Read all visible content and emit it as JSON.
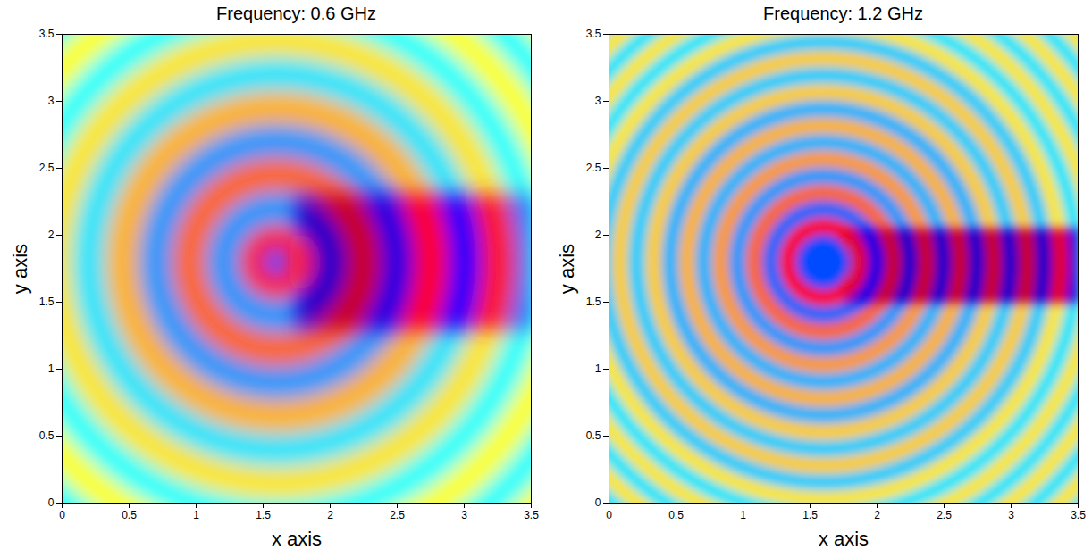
{
  "chart_data": [
    {
      "type": "heatmap",
      "title": "Frequency: 0.6 GHz",
      "x_label": "x axis",
      "y_label": "y axis",
      "xlim": [
        0,
        3.5
      ],
      "ylim": [
        0,
        3.5
      ],
      "xticks": [
        0,
        0.5,
        1,
        1.5,
        2,
        2.5,
        3,
        3.5
      ],
      "yticks": [
        0,
        0.5,
        1,
        1.5,
        2,
        2.5,
        3,
        3.5
      ],
      "color": "jet",
      "zlim": [
        -1,
        1
      ],
      "center": [
        1.6,
        1.8
      ],
      "rings": {
        "radius": [
          2.8,
          2.53,
          2.28,
          2.03,
          1.78,
          1.53,
          1.28,
          1.03,
          0.78,
          0.53,
          0.28,
          0.1
        ],
        "values": [
          0.25,
          -0.25,
          0.25,
          -0.25,
          0.3,
          -0.3,
          0.4,
          -0.45,
          0.55,
          -0.45,
          0.7,
          -0.6
        ],
        "beam_values": [
          0.25,
          -0.25,
          0.45,
          -0.55,
          0.7,
          -0.75,
          0.75,
          -0.8,
          0.85,
          -0.85,
          0.7,
          -0.6
        ]
      },
      "beam_x": [
        1.75,
        3.5
      ],
      "beam_y": [
        1.3,
        2.3
      ]
    },
    {
      "type": "heatmap",
      "title": "Frequency: 1.2 GHz",
      "x_label": "x axis",
      "y_label": "y axis",
      "xlim": [
        0,
        3.5
      ],
      "ylim": [
        0,
        3.5
      ],
      "xticks": [
        0,
        0.5,
        1,
        1.5,
        2,
        2.5,
        3,
        3.5
      ],
      "yticks": [
        0,
        0.5,
        1,
        1.5,
        2,
        2.5,
        3,
        3.5
      ],
      "color": "jet",
      "zlim": [
        -1,
        1
      ],
      "center": [
        1.6,
        1.8
      ],
      "rings": {
        "radius": [
          2.83,
          2.71,
          2.58,
          2.46,
          2.33,
          2.21,
          2.08,
          1.96,
          1.83,
          1.71,
          1.58,
          1.46,
          1.33,
          1.21,
          1.08,
          0.96,
          0.83,
          0.71,
          0.58,
          0.46,
          0.33,
          0.21
        ],
        "values": [
          0.3,
          -0.3,
          0.3,
          -0.3,
          0.3,
          -0.3,
          0.3,
          -0.3,
          0.3,
          -0.35,
          0.35,
          -0.35,
          0.35,
          -0.4,
          0.4,
          -0.4,
          0.45,
          -0.45,
          0.55,
          -0.55,
          0.75,
          -0.6
        ],
        "beam_values": [
          0.3,
          -0.3,
          0.3,
          -0.3,
          0.5,
          -0.6,
          0.75,
          -0.8,
          0.8,
          -0.85,
          0.85,
          -0.85,
          0.85,
          -0.85,
          0.85,
          -0.85,
          0.85,
          -0.85,
          0.85,
          -0.8,
          0.8,
          -0.6
        ]
      },
      "beam_x": [
        1.75,
        3.5
      ],
      "beam_y": [
        1.5,
        2.05
      ]
    }
  ]
}
